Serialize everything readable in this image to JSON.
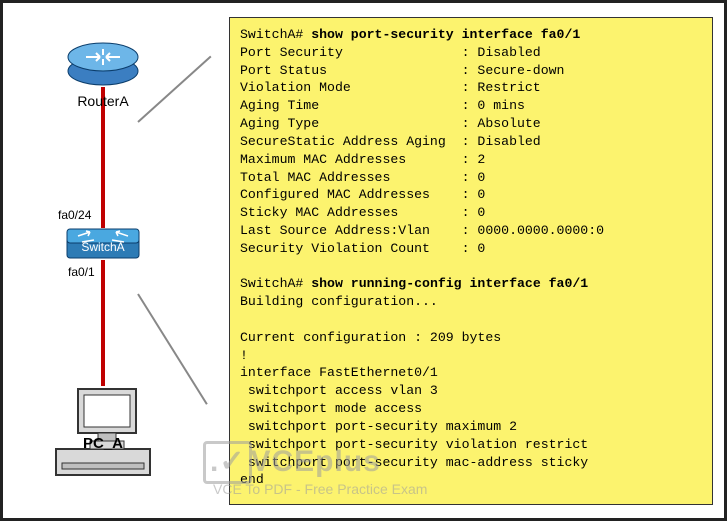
{
  "topology": {
    "router_label": "RouterA",
    "switch_label": "SwitchA",
    "port_top": "fa0/24",
    "port_bottom": "fa0/1",
    "pc_label": "PC_A",
    "link_color": "#c00000",
    "router_fill": "#3b7ec1",
    "router_top": "#6db6e8",
    "switch_fill": "#4aa8e0",
    "pc_fill": "#d9d9d9"
  },
  "terminal": {
    "background": "#fcf36e",
    "prompt1": "SwitchA# ",
    "cmd1": "show port-security interface fa0/1",
    "fields": [
      {
        "k": "Port Security",
        "v": "Disabled"
      },
      {
        "k": "Port Status",
        "v": "Secure-down"
      },
      {
        "k": "Violation Mode",
        "v": "Restrict"
      },
      {
        "k": "Aging Time",
        "v": "0 mins"
      },
      {
        "k": "Aging Type",
        "v": "Absolute"
      },
      {
        "k": "SecureStatic Address Aging",
        "v": "Disabled"
      },
      {
        "k": "Maximum MAC Addresses",
        "v": "2"
      },
      {
        "k": "Total MAC Addresses",
        "v": "0"
      },
      {
        "k": "Configured MAC Addresses",
        "v": "0"
      },
      {
        "k": "Sticky MAC Addresses",
        "v": "0"
      },
      {
        "k": "Last Source Address:Vlan",
        "v": "0000.0000.0000:0"
      },
      {
        "k": "Security Violation Count",
        "v": "0"
      }
    ],
    "prompt2": "SwitchA# ",
    "cmd2": "show running-config interface fa0/1",
    "building": "Building configuration...",
    "current": "Current configuration : 209 bytes",
    "config_lines": [
      "!",
      "interface FastEthernet0/1",
      " switchport access vlan 3",
      " switchport mode access",
      " switchport port-security maximum 2",
      " switchport port-security violation restrict",
      " switchport port-security mac-address sticky",
      "end"
    ]
  },
  "watermark": {
    "brand": "VCEplus",
    "sub": "VCE To PDF - Free Practice Exam"
  }
}
